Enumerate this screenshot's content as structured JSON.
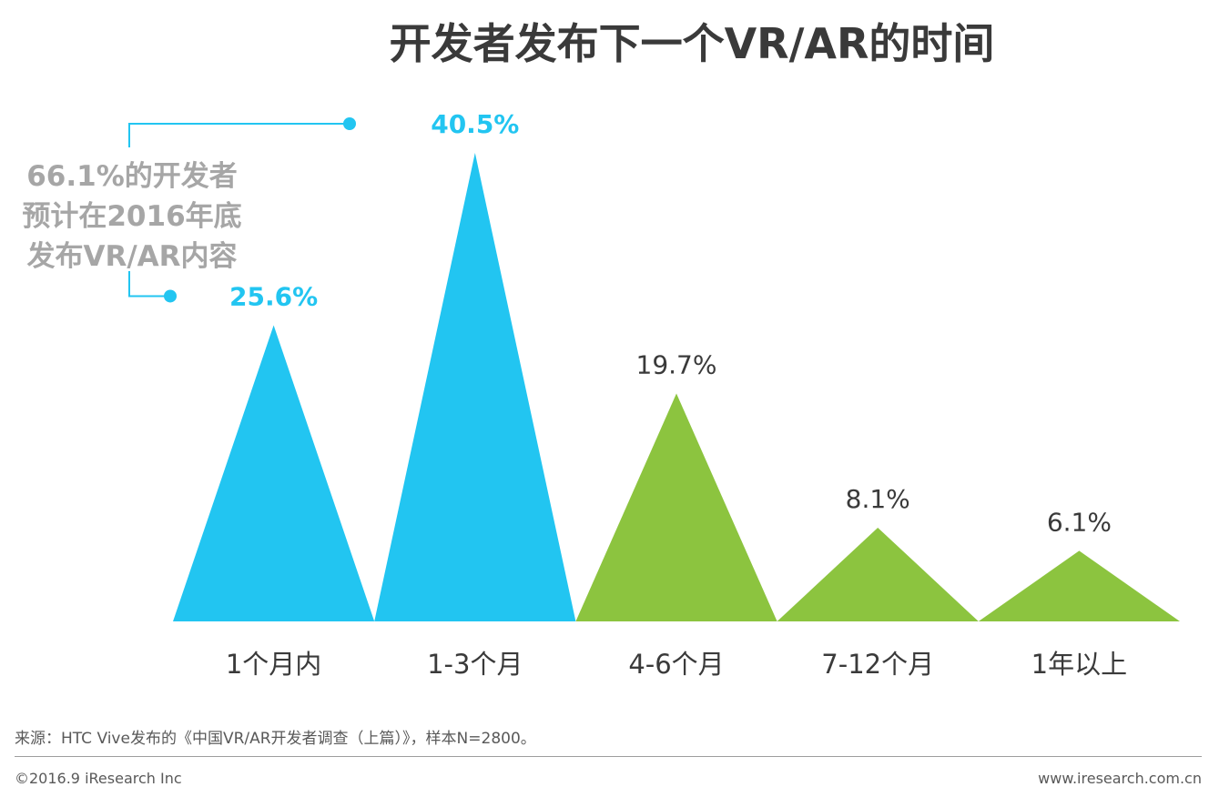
{
  "chart_data": {
    "type": "bar",
    "title": "开发者发布下一个VR/AR的时间",
    "categories": [
      "1个月内",
      "1-3个月",
      "4-6个月",
      "7-12个月",
      "1年以上"
    ],
    "values": [
      25.6,
      40.5,
      19.7,
      8.1,
      6.1
    ],
    "value_labels": [
      "25.6%",
      "40.5%",
      "19.7%",
      "8.1%",
      "6.1%"
    ],
    "colors": [
      "#22c5f1",
      "#22c5f1",
      "#8cc43f",
      "#8cc43f",
      "#8cc43f"
    ],
    "label_colors": [
      "#22c5f1",
      "#22c5f1",
      "#3a3a3a",
      "#3a3a3a",
      "#3a3a3a"
    ],
    "label_bold": [
      true,
      true,
      false,
      false,
      false
    ],
    "highlight_color": "#22c5f1",
    "annotation": "66.1%的开发者\n预计在2016年底\n发布VR/AR内容",
    "xlabel": "",
    "ylabel": "",
    "ylim": [
      0,
      40.5
    ]
  },
  "footer": {
    "source": "来源：HTC Vive发布的《中国VR/AR开发者调查（上篇）》，样本N=2800。",
    "copyright": "©2016.9 iResearch Inc",
    "website": "www.iresearch.com.cn"
  }
}
